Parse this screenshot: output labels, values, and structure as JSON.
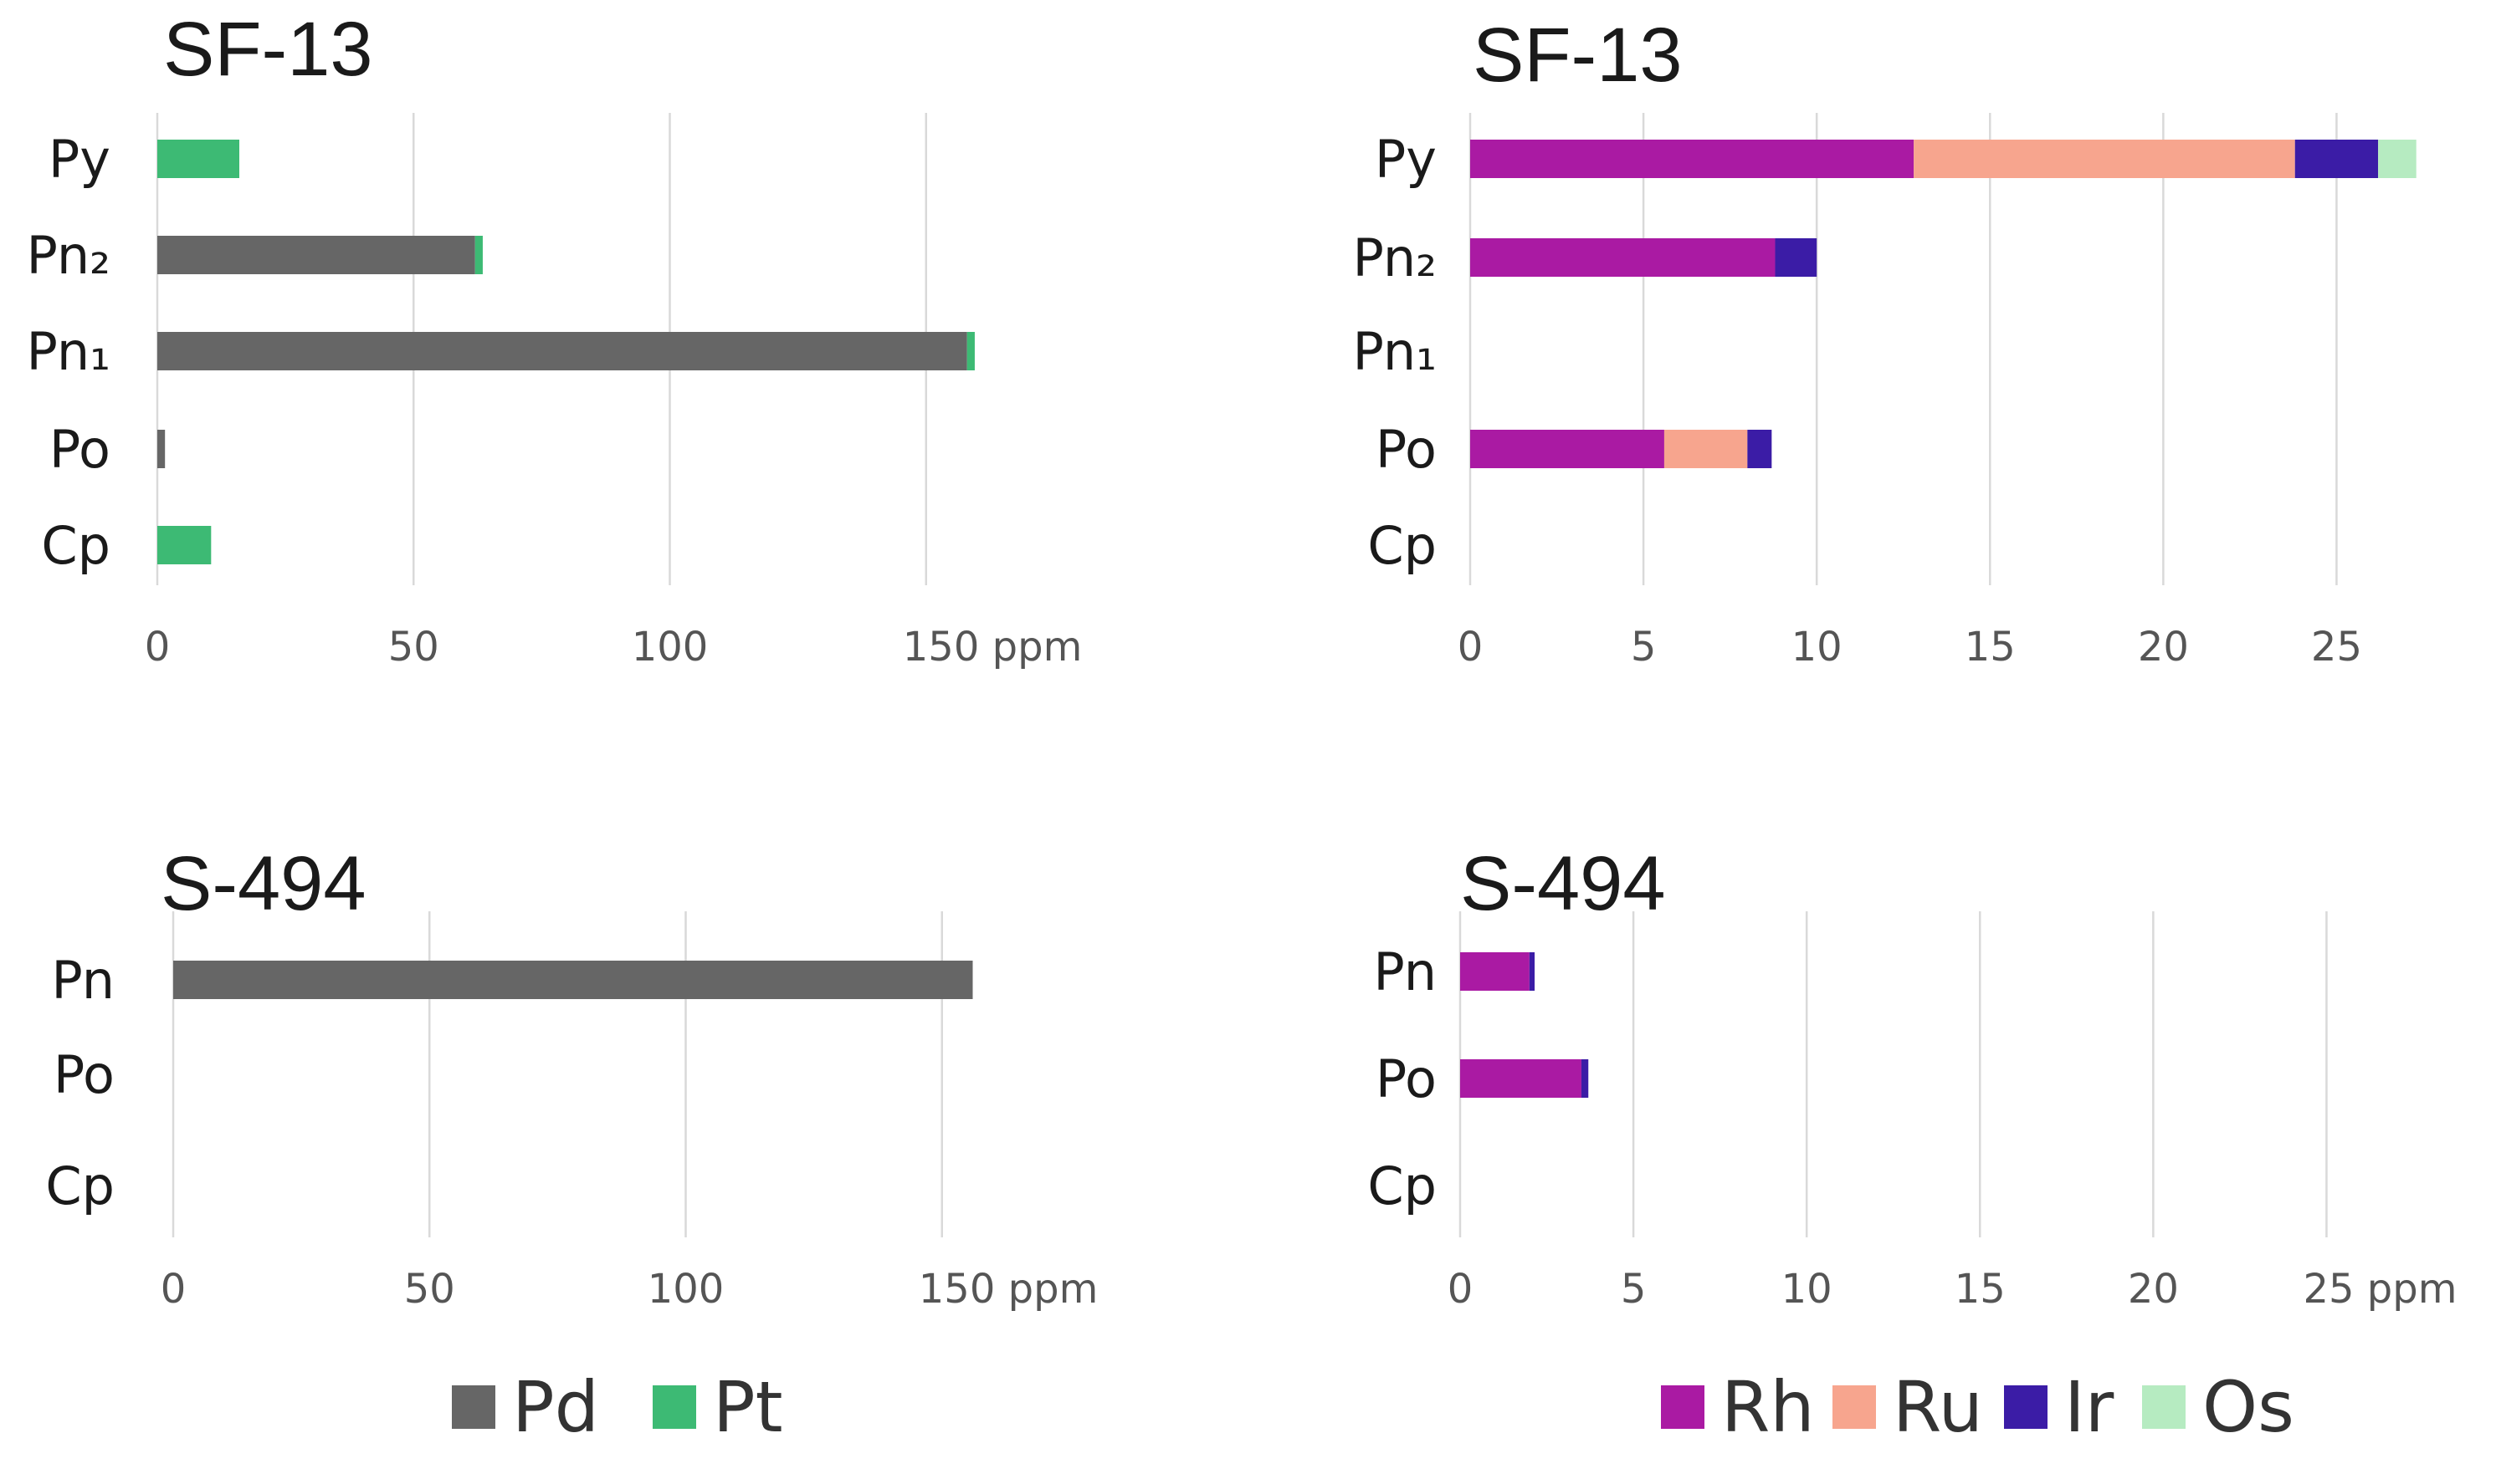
{
  "chart_data": [
    {
      "type": "bar",
      "orientation": "horizontal",
      "stacked": true,
      "title": "SF-13",
      "categories": [
        "Py",
        "Pn₂",
        "Pn₁",
        "Po",
        "Cp"
      ],
      "series": [
        {
          "name": "Pd",
          "color": "#666666",
          "values": [
            0,
            62,
            158,
            1.5,
            0
          ]
        },
        {
          "name": "Pt",
          "color": "#3dba74",
          "values": [
            16,
            1.5,
            1.5,
            0,
            10.5
          ]
        }
      ],
      "xlim": [
        0,
        160
      ],
      "ticks": [
        0,
        50,
        100,
        150
      ],
      "tick_labels": [
        "0",
        "50",
        "100",
        "150 ppm"
      ],
      "xlabel": "",
      "ylabel": "",
      "grid": true
    },
    {
      "type": "bar",
      "orientation": "horizontal",
      "stacked": true,
      "title": "SF-13",
      "categories": [
        "Py",
        "Pn₂",
        "Pn₁",
        "Po",
        "Cp"
      ],
      "series": [
        {
          "name": "Rh",
          "color": "#aa1aa3",
          "values": [
            12.8,
            8.8,
            0,
            5.6,
            0
          ]
        },
        {
          "name": "Ru",
          "color": "#f7a58e",
          "values": [
            11,
            0,
            0,
            2.4,
            0
          ]
        },
        {
          "name": "Ir",
          "color": "#3b1ca6",
          "values": [
            2.4,
            1.2,
            0,
            0.7,
            0
          ]
        },
        {
          "name": "Os",
          "color": "#b6ebc1",
          "values": [
            1.1,
            0,
            0,
            0,
            0
          ]
        }
      ],
      "xlim": [
        0,
        27.5
      ],
      "ticks": [
        0,
        5,
        10,
        15,
        20,
        25
      ],
      "tick_labels": [
        "0",
        "5",
        "10",
        "15",
        "20",
        "25"
      ],
      "xlabel": "",
      "ylabel": "",
      "grid": true
    },
    {
      "type": "bar",
      "orientation": "horizontal",
      "stacked": true,
      "title": "S-494",
      "categories": [
        "Pn",
        "Po",
        "Cp"
      ],
      "series": [
        {
          "name": "Pd",
          "color": "#666666",
          "values": [
            156,
            0,
            0
          ]
        },
        {
          "name": "Pt",
          "color": "#3dba74",
          "values": [
            0,
            0,
            0
          ]
        }
      ],
      "xlim": [
        0,
        160
      ],
      "ticks": [
        0,
        50,
        100,
        150
      ],
      "tick_labels": [
        "0",
        "50",
        "100",
        "150 ppm"
      ],
      "xlabel": "",
      "ylabel": "",
      "grid": true
    },
    {
      "type": "bar",
      "orientation": "horizontal",
      "stacked": true,
      "title": "S-494",
      "categories": [
        "Pn",
        "Po",
        "Cp"
      ],
      "series": [
        {
          "name": "Rh",
          "color": "#aa1aa3",
          "values": [
            2,
            3.5,
            0
          ]
        },
        {
          "name": "Ru",
          "color": "#f7a58e",
          "values": [
            0,
            0,
            0
          ]
        },
        {
          "name": "Ir",
          "color": "#3b1ca6",
          "values": [
            0.15,
            0.2,
            0
          ]
        },
        {
          "name": "Os",
          "color": "#b6ebc1",
          "values": [
            0,
            0,
            0
          ]
        }
      ],
      "xlim": [
        0,
        27.5
      ],
      "ticks": [
        0,
        5,
        10,
        15,
        20,
        25
      ],
      "tick_labels": [
        "0",
        "5",
        "10",
        "15",
        "20",
        "25 ppm"
      ],
      "xlabel": "",
      "ylabel": "",
      "grid": true
    }
  ],
  "legends": [
    {
      "items": [
        {
          "name": "Pd",
          "color": "#666666"
        },
        {
          "name": "Pt",
          "color": "#3dba74"
        }
      ]
    },
    {
      "items": [
        {
          "name": "Rh",
          "color": "#aa1aa3"
        },
        {
          "name": "Ru",
          "color": "#f7a58e"
        },
        {
          "name": "Ir",
          "color": "#3b1ca6"
        },
        {
          "name": "Os",
          "color": "#b6ebc1"
        }
      ]
    }
  ]
}
